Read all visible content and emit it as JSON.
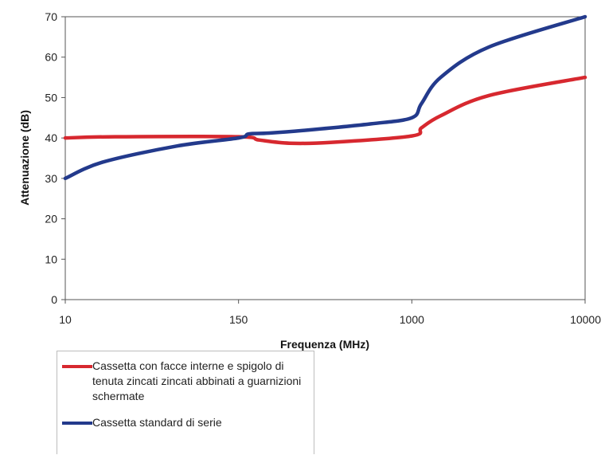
{
  "chart_data": {
    "type": "line",
    "xlabel": "Frequenza (MHz)",
    "ylabel": "Attenuazione (dB)",
    "x_ticks": [
      "10",
      "150",
      "1000",
      "10000"
    ],
    "y_ticks": [
      "0",
      "10",
      "20",
      "30",
      "40",
      "50",
      "60",
      "70"
    ],
    "ylim": [
      0,
      70
    ],
    "xlim": [
      10,
      10000
    ],
    "x_scale": "categorical",
    "grid": false,
    "legend_position": "bottom-left",
    "series": [
      {
        "name": "Cassetta con facce interne e spigolo di tenuta zincati zincati abbinati a guarnizioni schermate",
        "color": "#d7282f",
        "points": [
          [
            10,
            40.0
          ],
          [
            50,
            40.3
          ],
          [
            150,
            40.3
          ],
          [
            250,
            39.5
          ],
          [
            400,
            38.7
          ],
          [
            600,
            38.9
          ],
          [
            1000,
            40.5
          ],
          [
            1500,
            42.5
          ],
          [
            2500,
            45.5
          ],
          [
            5000,
            50.5
          ],
          [
            10000,
            55.0
          ]
        ]
      },
      {
        "name": "Cassetta standard di serie",
        "color": "#233a8c",
        "points": [
          [
            10,
            30.0
          ],
          [
            40,
            34.0
          ],
          [
            100,
            38.0
          ],
          [
            150,
            40.0
          ],
          [
            200,
            41.0
          ],
          [
            300,
            41.2
          ],
          [
            500,
            42.0
          ],
          [
            800,
            43.5
          ],
          [
            1000,
            45.0
          ],
          [
            1500,
            48.5
          ],
          [
            2500,
            55.0
          ],
          [
            5000,
            62.5
          ],
          [
            10000,
            70.0
          ]
        ]
      }
    ]
  }
}
